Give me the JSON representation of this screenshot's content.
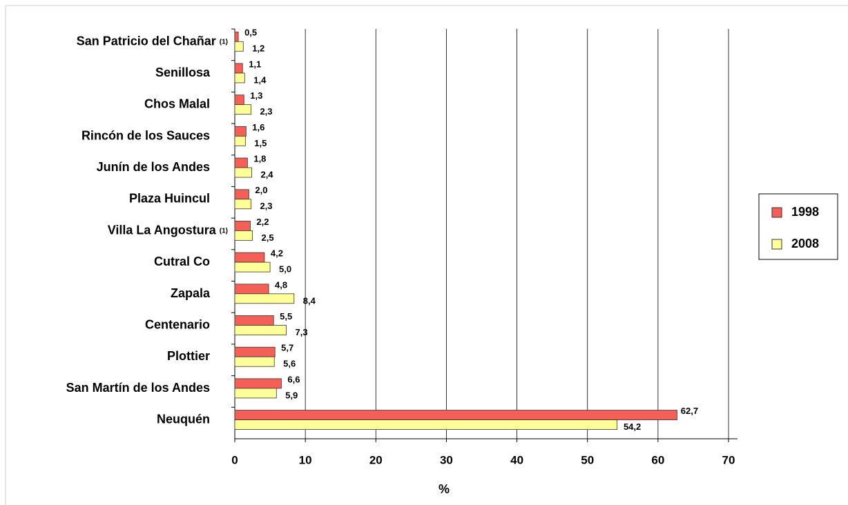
{
  "chart_data": {
    "type": "barh",
    "categories": [
      "San Patricio del Chañar",
      "Senillosa",
      "Chos Malal",
      "Rincón de los Sauces",
      "Junín de los Andes",
      "Plaza Huincul",
      "Villa La Angostura",
      "Cutral Co",
      "Zapala",
      "Centenario",
      "Plottier",
      "San Martín de los Andes",
      "Neuquén"
    ],
    "category_marks": [
      "(1)",
      null,
      null,
      null,
      null,
      null,
      "(1)",
      null,
      null,
      null,
      null,
      null,
      null
    ],
    "series": [
      {
        "name": "1998",
        "color": "#f45f57",
        "values": [
          0.5,
          1.1,
          1.3,
          1.6,
          1.8,
          2.0,
          2.2,
          4.2,
          4.8,
          5.5,
          5.7,
          6.6,
          62.7
        ],
        "value_labels": [
          "0,5",
          "1,1",
          "1,3",
          "1,6",
          "1,8",
          "2,0",
          "2,2",
          "4,2",
          "4,8",
          "5,5",
          "5,7",
          "6,6",
          "62,7"
        ]
      },
      {
        "name": "2008",
        "color": "#ffff99",
        "values": [
          1.2,
          1.4,
          2.3,
          1.5,
          2.4,
          2.3,
          2.5,
          5.0,
          8.4,
          7.3,
          5.6,
          5.9,
          54.2
        ],
        "value_labels": [
          "1,2",
          "1,4",
          "2,3",
          "1,5",
          "2,4",
          "2,3",
          "2,5",
          "5,0",
          "8,4",
          "7,3",
          "5,6",
          "5,9",
          "54,2"
        ]
      }
    ],
    "xlabel": "%",
    "xlim": [
      0,
      70
    ],
    "xticks": [
      0,
      10,
      20,
      30,
      40,
      50,
      60,
      70
    ],
    "grid": true,
    "legend": "right"
  }
}
